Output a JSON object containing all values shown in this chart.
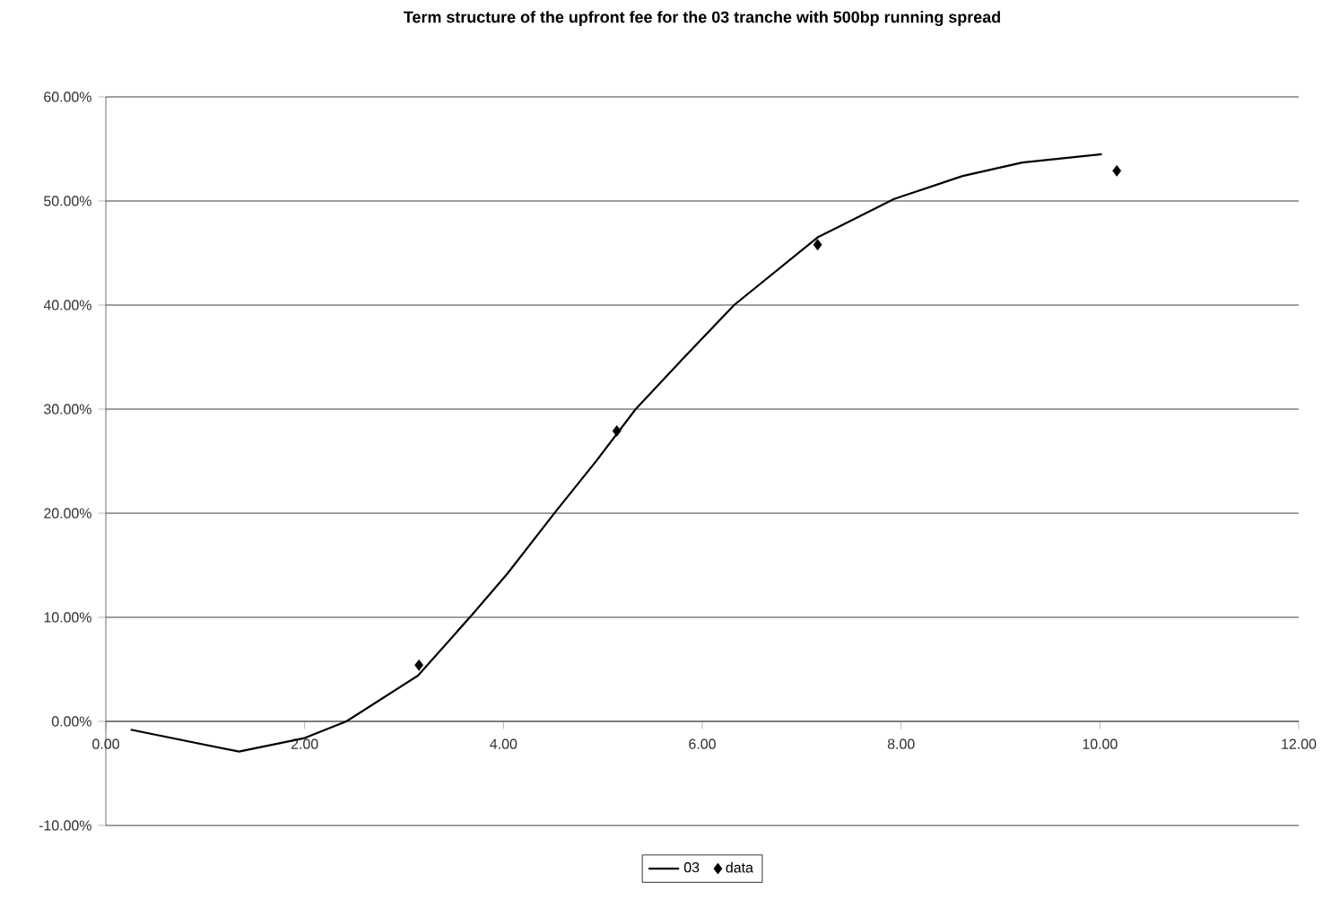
{
  "chart_data": {
    "type": "line",
    "title": "Term structure of the upfront fee for the 03 tranche with 500bp running spread",
    "xlim": [
      0,
      12
    ],
    "ylim": [
      -10,
      60
    ],
    "xticks": [
      {
        "value": 0,
        "label": "0.00"
      },
      {
        "value": 2,
        "label": "2.00"
      },
      {
        "value": 4,
        "label": "4.00"
      },
      {
        "value": 6,
        "label": "6.00"
      },
      {
        "value": 8,
        "label": "8.00"
      },
      {
        "value": 10,
        "label": "10.00"
      },
      {
        "value": 12,
        "label": "12.00"
      }
    ],
    "yticks": [
      {
        "value": -10,
        "label": "-10.00%"
      },
      {
        "value": 0,
        "label": "0.00%"
      },
      {
        "value": 10,
        "label": "10.00%"
      },
      {
        "value": 20,
        "label": "20.00%"
      },
      {
        "value": 30,
        "label": "30.00%"
      },
      {
        "value": 40,
        "label": "40.00%"
      },
      {
        "value": 50,
        "label": "50.00%"
      },
      {
        "value": 60,
        "label": "60.00%"
      }
    ],
    "grid": "y",
    "legend": "bottom",
    "series": [
      {
        "name": "03",
        "type": "line",
        "color": "#000000",
        "marker": "none",
        "line_style": "solid",
        "x": [
          0.25,
          1.34,
          2.0,
          2.42,
          3.14,
          3.68,
          4.04,
          4.52,
          4.94,
          5.33,
          5.78,
          6.32,
          7.16,
          7.93,
          8.62,
          9.22,
          10.02
        ],
        "values": [
          -0.8,
          -2.9,
          -1.6,
          0,
          4.4,
          10.2,
          14.2,
          20.1,
          25.1,
          30,
          34.6,
          40,
          46.5,
          50.2,
          52.4,
          53.7,
          54.5
        ]
      },
      {
        "name": "data",
        "type": "scatter",
        "color": "#000000",
        "marker": "diamond",
        "x": [
          3.15,
          5.14,
          7.16,
          10.17
        ],
        "values": [
          5.4,
          27.9,
          45.8,
          52.9
        ]
      }
    ]
  }
}
